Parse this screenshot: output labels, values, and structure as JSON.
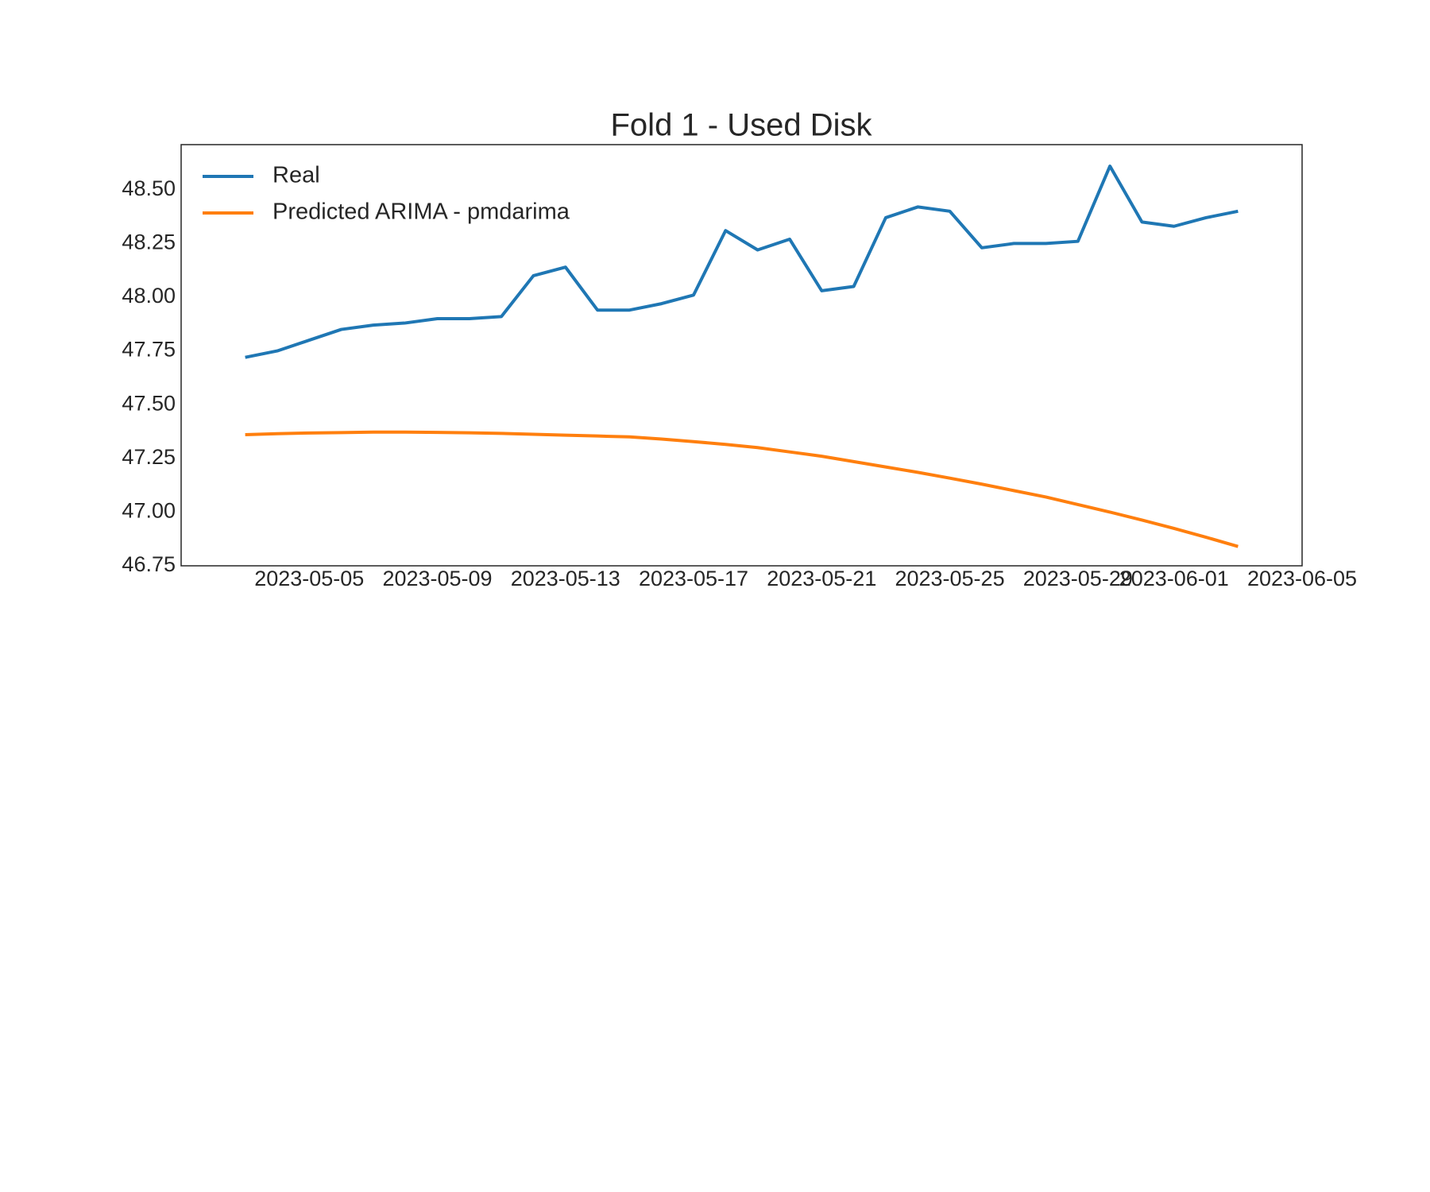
{
  "chart_data": {
    "type": "line",
    "title": "Fold 1 - Used Disk",
    "x": [
      "2023-05-03",
      "2023-05-04",
      "2023-05-05",
      "2023-05-06",
      "2023-05-07",
      "2023-05-08",
      "2023-05-09",
      "2023-05-10",
      "2023-05-11",
      "2023-05-12",
      "2023-05-13",
      "2023-05-14",
      "2023-05-15",
      "2023-05-16",
      "2023-05-17",
      "2023-05-18",
      "2023-05-19",
      "2023-05-20",
      "2023-05-21",
      "2023-05-22",
      "2023-05-23",
      "2023-05-24",
      "2023-05-25",
      "2023-05-26",
      "2023-05-27",
      "2023-05-28",
      "2023-05-29",
      "2023-05-30",
      "2023-05-31",
      "2023-06-01",
      "2023-06-02",
      "2023-06-03"
    ],
    "series": [
      {
        "name": "Real",
        "color": "#1f77b4",
        "values": [
          47.72,
          47.75,
          47.8,
          47.85,
          47.87,
          47.88,
          47.9,
          47.9,
          47.91,
          48.1,
          48.14,
          47.94,
          47.94,
          47.97,
          48.01,
          48.31,
          48.22,
          48.27,
          48.03,
          48.05,
          48.37,
          48.42,
          48.4,
          48.23,
          48.25,
          48.25,
          48.26,
          48.61,
          48.35,
          48.33,
          48.37,
          48.4
        ]
      },
      {
        "name": "Predicted ARIMA - pmdarima",
        "color": "#ff7f0e",
        "values": [
          47.36,
          47.365,
          47.368,
          47.37,
          47.372,
          47.372,
          47.371,
          47.369,
          47.366,
          47.362,
          47.358,
          47.354,
          47.35,
          47.34,
          47.328,
          47.315,
          47.3,
          47.28,
          47.26,
          47.235,
          47.21,
          47.185,
          47.158,
          47.13,
          47.1,
          47.07,
          47.035,
          47.0,
          46.963,
          46.924,
          46.883,
          46.84
        ]
      }
    ],
    "xlim": [
      "2023-05-01",
      "2023-06-05"
    ],
    "xticks": [
      "2023-05-05",
      "2023-05-09",
      "2023-05-13",
      "2023-05-17",
      "2023-05-21",
      "2023-05-25",
      "2023-05-29",
      "2023-06-01",
      "2023-06-05"
    ],
    "ylim": [
      46.75,
      48.71
    ],
    "yticks": [
      46.75,
      {
        "value": 47,
        "label": "47.00"
      },
      47.25,
      {
        "value": 47.5,
        "label": "47.50"
      },
      47.75,
      {
        "value": 48,
        "label": "48.00"
      },
      48.25,
      {
        "value": 48.5,
        "label": "48.50"
      }
    ],
    "grid": false,
    "legend": "upper left"
  }
}
